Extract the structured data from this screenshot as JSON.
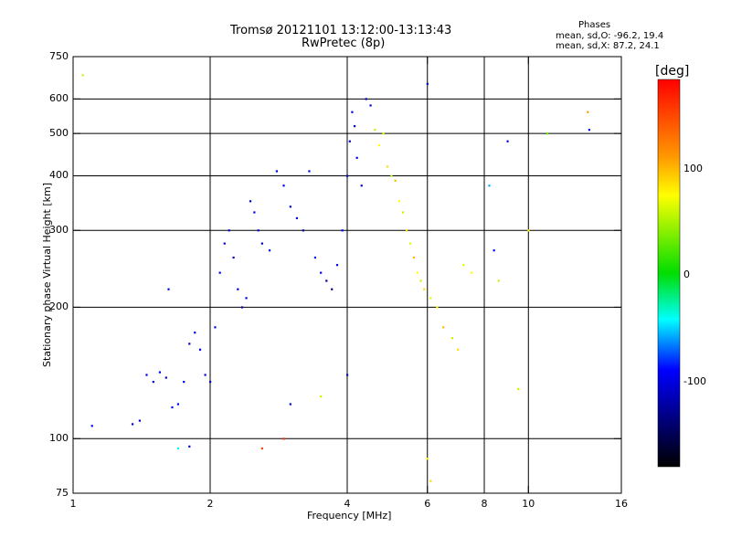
{
  "header": {
    "title_line1": "Tromsø 20121101 13:12:00-13:13:43",
    "title_line2": "RwPretec (8p)"
  },
  "stats": {
    "heading": "Phases",
    "line_o": "mean, sd,O: -96.2, 19.4",
    "line_x": "mean, sd,X:  87.2, 24.1"
  },
  "colorbar": {
    "label": "[deg]",
    "ticks": [
      "100",
      "0",
      "-100"
    ],
    "stops": [
      "#ff0000",
      "#ff8c00",
      "#ffff00",
      "#00dd00",
      "#00ffff",
      "#0000ff",
      "#000000"
    ]
  },
  "chart_data": {
    "type": "scatter",
    "title": "Tromsø 20121101 13:12:00-13:13:43",
    "subtitle": "RwPretec (8p)",
    "xlabel": "Frequency [MHz]",
    "ylabel": "Stationary phase Virtual Height [km]",
    "xscale": "log",
    "yscale": "log",
    "xlim": [
      1,
      16
    ],
    "ylim": [
      75,
      750
    ],
    "xticks": [
      "1",
      "2",
      "4",
      "6",
      "8",
      "10",
      "16"
    ],
    "xtick_values": [
      1,
      2,
      4,
      6,
      8,
      10,
      16
    ],
    "yticks": [
      "750",
      "600",
      "500",
      "400",
      "300",
      "200",
      "100",
      "75"
    ],
    "ytick_values": [
      750,
      600,
      500,
      400,
      300,
      200,
      100,
      75
    ],
    "grid_x": [
      2,
      4,
      6,
      8,
      10
    ],
    "grid_y": [
      600,
      500,
      400,
      300,
      200,
      100
    ],
    "colorbar_range": [
      -180,
      180
    ],
    "points": [
      [
        1.05,
        680,
        60
      ],
      [
        1.1,
        107,
        -100
      ],
      [
        1.35,
        108,
        -110
      ],
      [
        1.4,
        110,
        -105
      ],
      [
        1.45,
        140,
        -100
      ],
      [
        1.5,
        135,
        -95
      ],
      [
        1.55,
        142,
        -100
      ],
      [
        1.6,
        138,
        -105
      ],
      [
        1.65,
        118,
        -100
      ],
      [
        1.7,
        120,
        -95
      ],
      [
        1.75,
        135,
        -100
      ],
      [
        1.8,
        165,
        -110
      ],
      [
        1.85,
        175,
        -100
      ],
      [
        1.9,
        160,
        -105
      ],
      [
        1.95,
        140,
        -100
      ],
      [
        2.0,
        135,
        -95
      ],
      [
        1.62,
        220,
        -100
      ],
      [
        1.7,
        95,
        -40
      ],
      [
        1.8,
        96,
        -110
      ],
      [
        2.05,
        180,
        -100
      ],
      [
        2.1,
        240,
        -100
      ],
      [
        2.15,
        280,
        -95
      ],
      [
        2.2,
        300,
        -100
      ],
      [
        2.25,
        260,
        -110
      ],
      [
        2.3,
        220,
        -105
      ],
      [
        2.35,
        200,
        -120
      ],
      [
        2.4,
        210,
        -100
      ],
      [
        2.45,
        350,
        -100
      ],
      [
        2.5,
        330,
        -95
      ],
      [
        2.55,
        300,
        -100
      ],
      [
        2.6,
        280,
        -110
      ],
      [
        2.7,
        270,
        -100
      ],
      [
        2.8,
        410,
        -100
      ],
      [
        2.9,
        380,
        -95
      ],
      [
        3.0,
        340,
        -100
      ],
      [
        3.1,
        320,
        -110
      ],
      [
        3.2,
        300,
        -120
      ],
      [
        3.3,
        410,
        -100
      ],
      [
        3.4,
        260,
        -95
      ],
      [
        3.5,
        240,
        -100
      ],
      [
        3.6,
        230,
        -130
      ],
      [
        3.7,
        220,
        -135
      ],
      [
        3.8,
        250,
        -100
      ],
      [
        3.9,
        300,
        -95
      ],
      [
        4.0,
        400,
        -100
      ],
      [
        4.05,
        480,
        -110
      ],
      [
        4.1,
        560,
        -100
      ],
      [
        4.15,
        520,
        -95
      ],
      [
        4.2,
        440,
        -100
      ],
      [
        4.3,
        380,
        -105
      ],
      [
        4.4,
        600,
        -110
      ],
      [
        4.5,
        580,
        -100
      ],
      [
        4.6,
        510,
        60
      ],
      [
        4.7,
        470,
        80
      ],
      [
        4.8,
        500,
        70
      ],
      [
        4.9,
        420,
        90
      ],
      [
        5.0,
        400,
        60
      ],
      [
        5.1,
        390,
        100
      ],
      [
        5.2,
        350,
        80
      ],
      [
        5.3,
        330,
        60
      ],
      [
        5.4,
        300,
        90
      ],
      [
        5.5,
        280,
        70
      ],
      [
        5.6,
        260,
        100
      ],
      [
        5.7,
        240,
        80
      ],
      [
        5.8,
        230,
        60
      ],
      [
        5.9,
        220,
        90
      ],
      [
        6.0,
        650,
        -100
      ],
      [
        6.1,
        210,
        70
      ],
      [
        6.3,
        200,
        80
      ],
      [
        6.5,
        180,
        100
      ],
      [
        6.8,
        170,
        60
      ],
      [
        7.0,
        160,
        90
      ],
      [
        7.2,
        250,
        70
      ],
      [
        7.5,
        240,
        80
      ],
      [
        8.2,
        380,
        -60
      ],
      [
        8.4,
        270,
        -100
      ],
      [
        8.6,
        230,
        60
      ],
      [
        9.0,
        480,
        -100
      ],
      [
        9.5,
        130,
        60
      ],
      [
        10.0,
        300,
        80
      ],
      [
        11.0,
        500,
        30
      ],
      [
        13.5,
        560,
        110
      ],
      [
        13.6,
        510,
        -100
      ],
      [
        2.6,
        95,
        150
      ],
      [
        2.9,
        100,
        160
      ],
      [
        6.0,
        90,
        80
      ],
      [
        6.1,
        80,
        90
      ],
      [
        3.0,
        120,
        -100
      ],
      [
        3.5,
        125,
        60
      ],
      [
        4.0,
        140,
        -100
      ]
    ]
  }
}
